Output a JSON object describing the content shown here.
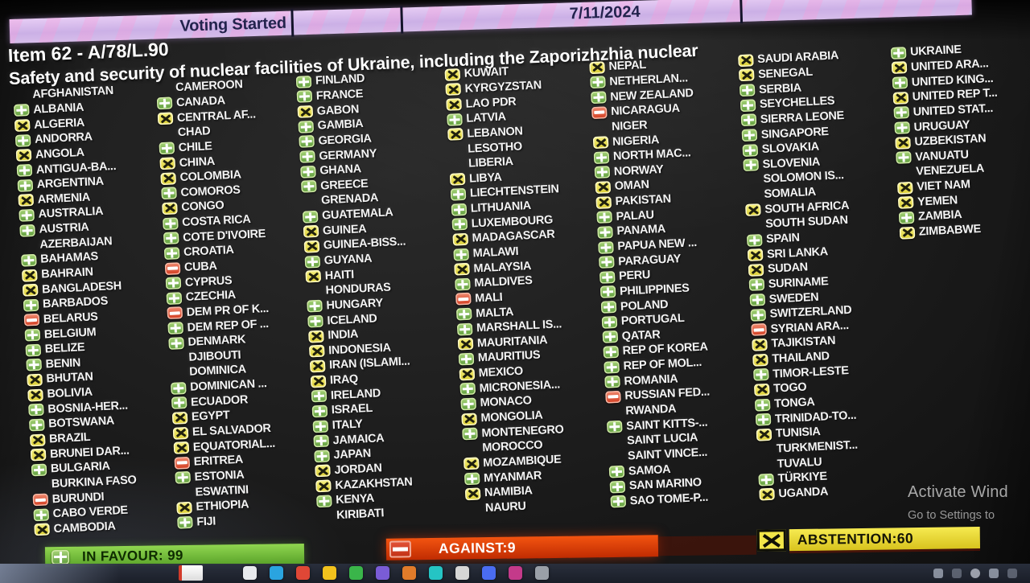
{
  "header": {
    "date": "7/11/2024",
    "status_label": "Voting Started"
  },
  "title": {
    "item": "Item 62 - A/78/L.90",
    "subject": "Safety and security of nuclear facilities of Ukraine, including the Zaporizhzhia nuclear"
  },
  "legend": {
    "in_favour": "IN FAVOUR: 99",
    "against": "AGAINST:9",
    "abstention": "ABSTENTION:60"
  },
  "counts": {
    "in_favour": 99,
    "against": 9,
    "abstention": 60
  },
  "vote_key": {
    "f": "in-favour",
    "a": "against",
    "x": "abstention",
    "n": "no-vote"
  },
  "colors": {
    "favour_icon": "#7cb85c",
    "against_icon": "#d84a2e",
    "abstain_icon": "#e8dd4a",
    "favour_bar": "#6fc03a",
    "against_bar": "#dd3e08",
    "abstain_bar": "#e8d838",
    "header_purple": "#cfb4e8",
    "text": "#f4f4f4",
    "background": "#151515"
  },
  "watermark": {
    "line1": "Activate Wind",
    "line2": "Go to Settings to"
  },
  "board": {
    "columns": [
      {
        "entries": [
          {
            "name": "AFGHANISTAN",
            "vote": "n"
          },
          {
            "name": "ALBANIA",
            "vote": "f"
          },
          {
            "name": "ALGERIA",
            "vote": "x"
          },
          {
            "name": "ANDORRA",
            "vote": "f"
          },
          {
            "name": "ANGOLA",
            "vote": "x"
          },
          {
            "name": "ANTIGUA-BA...",
            "vote": "f"
          },
          {
            "name": "ARGENTINA",
            "vote": "f"
          },
          {
            "name": "ARMENIA",
            "vote": "x"
          },
          {
            "name": "AUSTRALIA",
            "vote": "f"
          },
          {
            "name": "AUSTRIA",
            "vote": "f"
          },
          {
            "name": "AZERBAIJAN",
            "vote": "n"
          },
          {
            "name": "BAHAMAS",
            "vote": "f"
          },
          {
            "name": "BAHRAIN",
            "vote": "x"
          },
          {
            "name": "BANGLADESH",
            "vote": "x"
          },
          {
            "name": "BARBADOS",
            "vote": "f"
          },
          {
            "name": "BELARUS",
            "vote": "a"
          },
          {
            "name": "BELGIUM",
            "vote": "f"
          },
          {
            "name": "BELIZE",
            "vote": "f"
          },
          {
            "name": "BENIN",
            "vote": "f"
          },
          {
            "name": "BHUTAN",
            "vote": "x"
          },
          {
            "name": "BOLIVIA",
            "vote": "x"
          },
          {
            "name": "BOSNIA-HER...",
            "vote": "f"
          },
          {
            "name": "BOTSWANA",
            "vote": "f"
          },
          {
            "name": "BRAZIL",
            "vote": "x"
          },
          {
            "name": "BRUNEI DAR...",
            "vote": "x"
          },
          {
            "name": "BULGARIA",
            "vote": "f"
          },
          {
            "name": "BURKINA FASO",
            "vote": "n"
          },
          {
            "name": "BURUNDI",
            "vote": "a"
          },
          {
            "name": "CABO VERDE",
            "vote": "f"
          },
          {
            "name": "CAMBODIA",
            "vote": "x"
          }
        ]
      },
      {
        "entries": [
          {
            "name": "CAMEROON",
            "vote": "n"
          },
          {
            "name": "CANADA",
            "vote": "f"
          },
          {
            "name": "CENTRAL AF...",
            "vote": "x"
          },
          {
            "name": "CHAD",
            "vote": "n"
          },
          {
            "name": "CHILE",
            "vote": "f"
          },
          {
            "name": "CHINA",
            "vote": "x"
          },
          {
            "name": "COLOMBIA",
            "vote": "x"
          },
          {
            "name": "COMOROS",
            "vote": "f"
          },
          {
            "name": "CONGO",
            "vote": "x"
          },
          {
            "name": "COSTA RICA",
            "vote": "f"
          },
          {
            "name": "COTE D'IVOIRE",
            "vote": "f"
          },
          {
            "name": "CROATIA",
            "vote": "f"
          },
          {
            "name": "CUBA",
            "vote": "a"
          },
          {
            "name": "CYPRUS",
            "vote": "f"
          },
          {
            "name": "CZECHIA",
            "vote": "f"
          },
          {
            "name": "DEM PR OF K...",
            "vote": "a"
          },
          {
            "name": "DEM REP OF ...",
            "vote": "f"
          },
          {
            "name": "DENMARK",
            "vote": "f"
          },
          {
            "name": "DJIBOUTI",
            "vote": "n"
          },
          {
            "name": "DOMINICA",
            "vote": "n"
          },
          {
            "name": "DOMINICAN ...",
            "vote": "f"
          },
          {
            "name": "ECUADOR",
            "vote": "f"
          },
          {
            "name": "EGYPT",
            "vote": "x"
          },
          {
            "name": "EL SALVADOR",
            "vote": "x"
          },
          {
            "name": "EQUATORIAL...",
            "vote": "x"
          },
          {
            "name": "ERITREA",
            "vote": "a"
          },
          {
            "name": "ESTONIA",
            "vote": "f"
          },
          {
            "name": "ESWATINI",
            "vote": "n"
          },
          {
            "name": "ETHIOPIA",
            "vote": "x"
          },
          {
            "name": "FIJI",
            "vote": "f"
          }
        ]
      },
      {
        "entries": [
          {
            "name": "FINLAND",
            "vote": "f"
          },
          {
            "name": "FRANCE",
            "vote": "f"
          },
          {
            "name": "GABON",
            "vote": "x"
          },
          {
            "name": "GAMBIA",
            "vote": "f"
          },
          {
            "name": "GEORGIA",
            "vote": "f"
          },
          {
            "name": "GERMANY",
            "vote": "f"
          },
          {
            "name": "GHANA",
            "vote": "f"
          },
          {
            "name": "GREECE",
            "vote": "f"
          },
          {
            "name": "GRENADA",
            "vote": "n"
          },
          {
            "name": "GUATEMALA",
            "vote": "f"
          },
          {
            "name": "GUINEA",
            "vote": "x"
          },
          {
            "name": "GUINEA-BISS...",
            "vote": "x"
          },
          {
            "name": "GUYANA",
            "vote": "f"
          },
          {
            "name": "HAITI",
            "vote": "x"
          },
          {
            "name": "HONDURAS",
            "vote": "n"
          },
          {
            "name": "HUNGARY",
            "vote": "f"
          },
          {
            "name": "ICELAND",
            "vote": "f"
          },
          {
            "name": "INDIA",
            "vote": "x"
          },
          {
            "name": "INDONESIA",
            "vote": "x"
          },
          {
            "name": "IRAN (ISLAMI...",
            "vote": "x"
          },
          {
            "name": "IRAQ",
            "vote": "x"
          },
          {
            "name": "IRELAND",
            "vote": "f"
          },
          {
            "name": "ISRAEL",
            "vote": "f"
          },
          {
            "name": "ITALY",
            "vote": "f"
          },
          {
            "name": "JAMAICA",
            "vote": "f"
          },
          {
            "name": "JAPAN",
            "vote": "f"
          },
          {
            "name": "JORDAN",
            "vote": "x"
          },
          {
            "name": "KAZAKHSTAN",
            "vote": "x"
          },
          {
            "name": "KENYA",
            "vote": "f"
          },
          {
            "name": "KIRIBATI",
            "vote": "n"
          }
        ]
      },
      {
        "entries": [
          {
            "name": "KUWAIT",
            "vote": "x"
          },
          {
            "name": "KYRGYZSTAN",
            "vote": "x"
          },
          {
            "name": "LAO PDR",
            "vote": "x"
          },
          {
            "name": "LATVIA",
            "vote": "f"
          },
          {
            "name": "LEBANON",
            "vote": "x"
          },
          {
            "name": "LESOTHO",
            "vote": "n"
          },
          {
            "name": "LIBERIA",
            "vote": "n"
          },
          {
            "name": "LIBYA",
            "vote": "x"
          },
          {
            "name": "LIECHTENSTEIN",
            "vote": "f"
          },
          {
            "name": "LITHUANIA",
            "vote": "f"
          },
          {
            "name": "LUXEMBOURG",
            "vote": "f"
          },
          {
            "name": "MADAGASCAR",
            "vote": "x"
          },
          {
            "name": "MALAWI",
            "vote": "f"
          },
          {
            "name": "MALAYSIA",
            "vote": "x"
          },
          {
            "name": "MALDIVES",
            "vote": "f"
          },
          {
            "name": "MALI",
            "vote": "a"
          },
          {
            "name": "MALTA",
            "vote": "f"
          },
          {
            "name": "MARSHALL IS...",
            "vote": "f"
          },
          {
            "name": "MAURITANIA",
            "vote": "x"
          },
          {
            "name": "MAURITIUS",
            "vote": "f"
          },
          {
            "name": "MEXICO",
            "vote": "x"
          },
          {
            "name": "MICRONESIA...",
            "vote": "f"
          },
          {
            "name": "MONACO",
            "vote": "f"
          },
          {
            "name": "MONGOLIA",
            "vote": "x"
          },
          {
            "name": "MONTENEGRO",
            "vote": "f"
          },
          {
            "name": "MOROCCO",
            "vote": "n"
          },
          {
            "name": "MOZAMBIQUE",
            "vote": "x"
          },
          {
            "name": "MYANMAR",
            "vote": "f"
          },
          {
            "name": "NAMIBIA",
            "vote": "x"
          },
          {
            "name": "NAURU",
            "vote": "n"
          }
        ]
      },
      {
        "entries": [
          {
            "name": "NEPAL",
            "vote": "x"
          },
          {
            "name": "NETHERLAN...",
            "vote": "f"
          },
          {
            "name": "NEW ZEALAND",
            "vote": "f"
          },
          {
            "name": "NICARAGUA",
            "vote": "a"
          },
          {
            "name": "NIGER",
            "vote": "n"
          },
          {
            "name": "NIGERIA",
            "vote": "x"
          },
          {
            "name": "NORTH MAC...",
            "vote": "f"
          },
          {
            "name": "NORWAY",
            "vote": "f"
          },
          {
            "name": "OMAN",
            "vote": "x"
          },
          {
            "name": "PAKISTAN",
            "vote": "x"
          },
          {
            "name": "PALAU",
            "vote": "f"
          },
          {
            "name": "PANAMA",
            "vote": "f"
          },
          {
            "name": "PAPUA NEW ...",
            "vote": "f"
          },
          {
            "name": "PARAGUAY",
            "vote": "f"
          },
          {
            "name": "PERU",
            "vote": "f"
          },
          {
            "name": "PHILIPPINES",
            "vote": "f"
          },
          {
            "name": "POLAND",
            "vote": "f"
          },
          {
            "name": "PORTUGAL",
            "vote": "f"
          },
          {
            "name": "QATAR",
            "vote": "f"
          },
          {
            "name": "REP OF KOREA",
            "vote": "f"
          },
          {
            "name": "REP OF MOL...",
            "vote": "f"
          },
          {
            "name": "ROMANIA",
            "vote": "f"
          },
          {
            "name": "RUSSIAN FED...",
            "vote": "a"
          },
          {
            "name": "RWANDA",
            "vote": "n"
          },
          {
            "name": "SAINT KITTS-...",
            "vote": "f"
          },
          {
            "name": "SAINT LUCIA",
            "vote": "n"
          },
          {
            "name": "SAINT VINCE...",
            "vote": "n"
          },
          {
            "name": "SAMOA",
            "vote": "f"
          },
          {
            "name": "SAN MARINO",
            "vote": "f"
          },
          {
            "name": "SAO TOME-P...",
            "vote": "f"
          }
        ]
      },
      {
        "entries": [
          {
            "name": "SAUDI ARABIA",
            "vote": "x"
          },
          {
            "name": "SENEGAL",
            "vote": "x"
          },
          {
            "name": "SERBIA",
            "vote": "f"
          },
          {
            "name": "SEYCHELLES",
            "vote": "f"
          },
          {
            "name": "SIERRA LEONE",
            "vote": "f"
          },
          {
            "name": "SINGAPORE",
            "vote": "f"
          },
          {
            "name": "SLOVAKIA",
            "vote": "f"
          },
          {
            "name": "SLOVENIA",
            "vote": "f"
          },
          {
            "name": "SOLOMON IS...",
            "vote": "n"
          },
          {
            "name": "SOMALIA",
            "vote": "n"
          },
          {
            "name": "SOUTH AFRICA",
            "vote": "x"
          },
          {
            "name": "SOUTH SUDAN",
            "vote": "n"
          },
          {
            "name": "SPAIN",
            "vote": "f"
          },
          {
            "name": "SRI LANKA",
            "vote": "x"
          },
          {
            "name": "SUDAN",
            "vote": "x"
          },
          {
            "name": "SURINAME",
            "vote": "f"
          },
          {
            "name": "SWEDEN",
            "vote": "f"
          },
          {
            "name": "SWITZERLAND",
            "vote": "f"
          },
          {
            "name": "SYRIAN ARA...",
            "vote": "a"
          },
          {
            "name": "TAJIKISTAN",
            "vote": "x"
          },
          {
            "name": "THAILAND",
            "vote": "x"
          },
          {
            "name": "TIMOR-LESTE",
            "vote": "f"
          },
          {
            "name": "TOGO",
            "vote": "x"
          },
          {
            "name": "TONGA",
            "vote": "f"
          },
          {
            "name": "TRINIDAD-TO...",
            "vote": "f"
          },
          {
            "name": "TUNISIA",
            "vote": "x"
          },
          {
            "name": "TURKMENIST...",
            "vote": "n"
          },
          {
            "name": "TUVALU",
            "vote": "n"
          },
          {
            "name": "TÜRKIYE",
            "vote": "f"
          },
          {
            "name": "UGANDA",
            "vote": "x"
          }
        ]
      },
      {
        "entries": [
          {
            "name": "UKRAINE",
            "vote": "f"
          },
          {
            "name": "UNITED ARA...",
            "vote": "x"
          },
          {
            "name": "UNITED KING...",
            "vote": "f"
          },
          {
            "name": "UNITED REP T...",
            "vote": "x"
          },
          {
            "name": "UNITED STAT...",
            "vote": "f"
          },
          {
            "name": "URUGUAY",
            "vote": "f"
          },
          {
            "name": "UZBEKISTAN",
            "vote": "x"
          },
          {
            "name": "VANUATU",
            "vote": "f"
          },
          {
            "name": "VENEZUELA",
            "vote": "n"
          },
          {
            "name": "VIET NAM",
            "vote": "x"
          },
          {
            "name": "YEMEN",
            "vote": "x"
          },
          {
            "name": "ZAMBIA",
            "vote": "f"
          },
          {
            "name": "ZIMBABWE",
            "vote": "x"
          }
        ]
      }
    ]
  },
  "taskbar": {
    "icons": [
      {
        "name": "taskbar-app-icon",
        "color": "#e8eaed"
      },
      {
        "name": "taskbar-app-icon",
        "color": "#2aa4e0"
      },
      {
        "name": "taskbar-app-icon",
        "color": "#e04736"
      },
      {
        "name": "taskbar-app-icon",
        "color": "#f2c21d"
      },
      {
        "name": "taskbar-app-icon",
        "color": "#3ab54a"
      },
      {
        "name": "taskbar-app-icon",
        "color": "#7a5cd6"
      },
      {
        "name": "taskbar-app-icon",
        "color": "#e07b2a"
      },
      {
        "name": "taskbar-app-icon",
        "color": "#25c4c4"
      },
      {
        "name": "taskbar-app-icon",
        "color": "#d6d6d6"
      },
      {
        "name": "taskbar-app-icon",
        "color": "#4a6cf0"
      },
      {
        "name": "taskbar-app-icon",
        "color": "#c43a8a"
      },
      {
        "name": "taskbar-app-icon",
        "color": "#9aa0a8"
      }
    ]
  }
}
